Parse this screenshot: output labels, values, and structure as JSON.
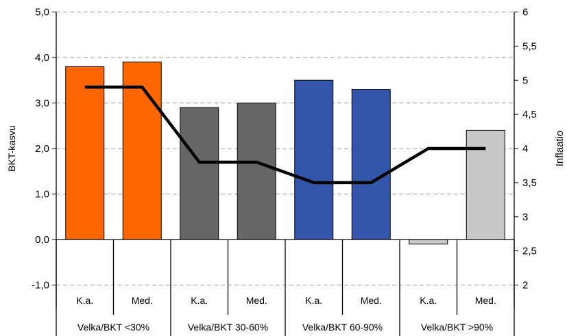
{
  "chart_data": {
    "type": "bar",
    "ylabel": "BKT-kasvu",
    "y2label": "Inflaatio",
    "ylim": [
      -1.5,
      5
    ],
    "y2lim": [
      2,
      6
    ],
    "yticks": [
      "-1,0",
      "0,0",
      "1,0",
      "2,0",
      "3,0",
      "4,0",
      "5,0"
    ],
    "y2ticks": [
      "2",
      "2,5",
      "3",
      "3,5",
      "4",
      "4,5",
      "5",
      "5,5",
      "6"
    ],
    "grid": true,
    "categories": [
      "K.a.",
      "Med.",
      "K.a.",
      "Med.",
      "K.a.",
      "Med.",
      "K.a.",
      "Med."
    ],
    "groups": [
      "Velka/BKT <30%",
      "Velka/BKT 30-60%",
      "Velka/BKT 60-90%",
      "Velka/BKT >90%"
    ],
    "series": [
      {
        "type": "bar",
        "axis": "left",
        "values": [
          3.8,
          3.9,
          2.9,
          3.0,
          3.5,
          3.3,
          -0.1,
          2.4
        ],
        "colors": [
          "#ff6600",
          "#ff6600",
          "#666666",
          "#666666",
          "#3355aa",
          "#3355aa",
          "#c8c8c8",
          "#c8c8c8"
        ]
      },
      {
        "type": "line",
        "axis": "right",
        "values": [
          4.9,
          4.9,
          3.8,
          3.8,
          3.5,
          3.5,
          4.0,
          4.0
        ],
        "color": "#000000"
      }
    ]
  }
}
